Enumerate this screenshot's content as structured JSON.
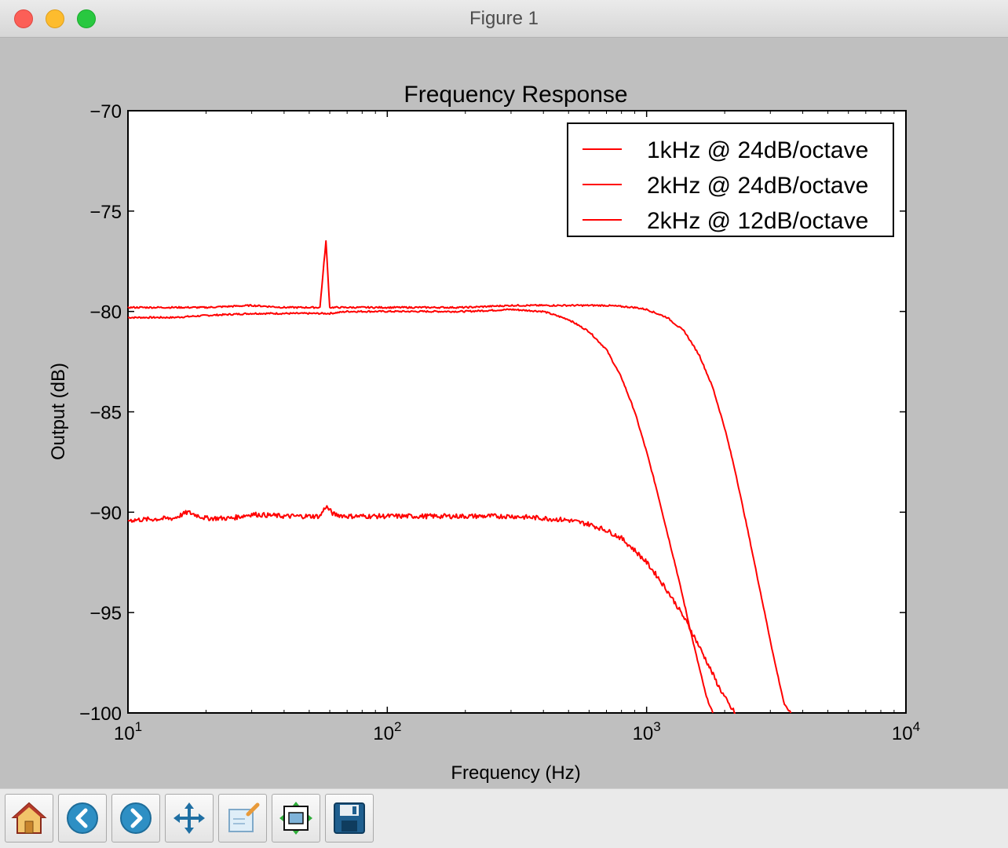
{
  "window": {
    "title": "Figure 1"
  },
  "toolbar": {
    "buttons": [
      {
        "name": "home-button",
        "icon": "home-icon"
      },
      {
        "name": "back-button",
        "icon": "back-arrow-icon"
      },
      {
        "name": "forward-button",
        "icon": "forward-arrow-icon"
      },
      {
        "name": "pan-button",
        "icon": "move-icon"
      },
      {
        "name": "zoom-button",
        "icon": "zoom-rect-icon"
      },
      {
        "name": "subplots-button",
        "icon": "subplots-icon"
      },
      {
        "name": "save-button",
        "icon": "floppy-disk-icon"
      }
    ]
  },
  "chart_data": {
    "type": "line",
    "title": "Frequency Response",
    "xlabel": "Frequency (Hz)",
    "ylabel": "Output (dB)",
    "xscale": "log",
    "xlim": [
      10,
      10000
    ],
    "ylim": [
      -100,
      -70
    ],
    "xticks": [
      {
        "base": "10",
        "exp": "1",
        "value": 10
      },
      {
        "base": "10",
        "exp": "2",
        "value": 100
      },
      {
        "base": "10",
        "exp": "3",
        "value": 1000
      },
      {
        "base": "10",
        "exp": "4",
        "value": 10000
      }
    ],
    "yticks": [
      {
        "label": "−70",
        "value": -70
      },
      {
        "label": "−75",
        "value": -75
      },
      {
        "label": "−80",
        "value": -80
      },
      {
        "label": "−85",
        "value": -85
      },
      {
        "label": "−90",
        "value": -90
      },
      {
        "label": "−95",
        "value": -95
      },
      {
        "label": "−100",
        "value": -100
      }
    ],
    "grid": false,
    "legend": "top-right",
    "series": [
      {
        "name": "1kHz @ 24dB/octave",
        "color": "#ff0000",
        "x": [
          10,
          15,
          20,
          30,
          50,
          60,
          70,
          100,
          200,
          300,
          400,
          500,
          600,
          700,
          800,
          900,
          1000,
          1100,
          1200,
          1300,
          1400,
          1500,
          1600,
          1700,
          1800
        ],
        "y": [
          -80.3,
          -80.3,
          -80.2,
          -80.1,
          -80.1,
          -80.1,
          -80.0,
          -80.0,
          -80.0,
          -79.9,
          -80.0,
          -80.4,
          -81.0,
          -81.9,
          -83.3,
          -85.0,
          -87.0,
          -89.0,
          -91.0,
          -92.8,
          -94.6,
          -96.3,
          -97.8,
          -99.2,
          -100.0
        ]
      },
      {
        "name": "2kHz @ 24dB/octave",
        "color": "#ff0000",
        "x": [
          10,
          20,
          30,
          40,
          55,
          58,
          60,
          63,
          70,
          100,
          200,
          300,
          500,
          700,
          900,
          1000,
          1200,
          1400,
          1600,
          1800,
          2000,
          2200,
          2500,
          2800,
          3100,
          3400,
          3600
        ],
        "y": [
          -79.8,
          -79.8,
          -79.7,
          -79.8,
          -79.8,
          -76.5,
          -79.8,
          -79.8,
          -79.8,
          -79.8,
          -79.8,
          -79.7,
          -79.7,
          -79.7,
          -79.8,
          -79.9,
          -80.3,
          -81.0,
          -82.2,
          -83.8,
          -85.8,
          -88.0,
          -91.4,
          -94.5,
          -97.3,
          -99.6,
          -100.0
        ]
      },
      {
        "name": "2kHz @ 12dB/octave",
        "color": "#ff0000",
        "x": [
          10,
          15,
          17,
          20,
          25,
          30,
          40,
          55,
          58,
          62,
          70,
          100,
          200,
          300,
          400,
          500,
          600,
          700,
          800,
          900,
          1000,
          1100,
          1200,
          1300,
          1400,
          1500,
          1700,
          1900,
          2100,
          2200
        ],
        "y": [
          -90.4,
          -90.3,
          -90.0,
          -90.3,
          -90.3,
          -90.1,
          -90.2,
          -90.2,
          -89.7,
          -90.1,
          -90.2,
          -90.2,
          -90.2,
          -90.2,
          -90.3,
          -90.4,
          -90.6,
          -90.9,
          -91.3,
          -91.9,
          -92.5,
          -93.2,
          -93.9,
          -94.6,
          -95.3,
          -96.0,
          -97.4,
          -98.7,
          -99.7,
          -100.0
        ]
      }
    ]
  }
}
